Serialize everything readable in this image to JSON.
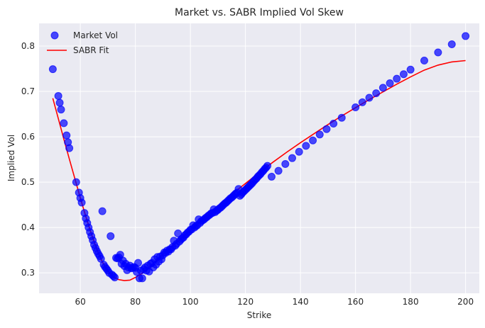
{
  "chart_data": {
    "type": "scatter",
    "title": "Market vs. SABR Implied Vol Skew",
    "xlabel": "Strike",
    "ylabel": "Implied Vol",
    "xlim": [
      45,
      205
    ],
    "ylim": [
      0.255,
      0.85
    ],
    "xticks": [
      60,
      80,
      100,
      120,
      140,
      160,
      180,
      200
    ],
    "yticks": [
      0.3,
      0.4,
      0.5,
      0.6,
      0.7,
      0.8
    ],
    "grid": true,
    "legend_position": "top-left",
    "background_color": "#eaeaf2",
    "series": [
      {
        "name": "Market Vol",
        "kind": "scatter",
        "color": "#0000ff",
        "points": [
          [
            50,
            0.749
          ],
          [
            52,
            0.69
          ],
          [
            52.5,
            0.675
          ],
          [
            53,
            0.66
          ],
          [
            54,
            0.63
          ],
          [
            55,
            0.603
          ],
          [
            55.5,
            0.588
          ],
          [
            56,
            0.575
          ],
          [
            58.5,
            0.5
          ],
          [
            59.5,
            0.477
          ],
          [
            60,
            0.465
          ],
          [
            60.5,
            0.455
          ],
          [
            61.5,
            0.432
          ],
          [
            62,
            0.42
          ],
          [
            62.5,
            0.41
          ],
          [
            63,
            0.4
          ],
          [
            63.5,
            0.39
          ],
          [
            64,
            0.381
          ],
          [
            64.5,
            0.372
          ],
          [
            65,
            0.362
          ],
          [
            65.5,
            0.355
          ],
          [
            66,
            0.348
          ],
          [
            66.5,
            0.342
          ],
          [
            67,
            0.337
          ],
          [
            67.5,
            0.331
          ],
          [
            68,
            0.436
          ],
          [
            68.5,
            0.318
          ],
          [
            69,
            0.313
          ],
          [
            69.5,
            0.309
          ],
          [
            70,
            0.305
          ],
          [
            70.5,
            0.3
          ],
          [
            71,
            0.381
          ],
          [
            71.5,
            0.296
          ],
          [
            72,
            0.293
          ],
          [
            72.5,
            0.29
          ],
          [
            73,
            0.333
          ],
          [
            73.5,
            0.332
          ],
          [
            74,
            0.334
          ],
          [
            74.5,
            0.34
          ],
          [
            75,
            0.32
          ],
          [
            75.5,
            0.327
          ],
          [
            76,
            0.315
          ],
          [
            76.5,
            0.32
          ],
          [
            77,
            0.306
          ],
          [
            77.5,
            0.312
          ],
          [
            78,
            0.316
          ],
          [
            78.5,
            0.31
          ],
          [
            79,
            0.311
          ],
          [
            79.5,
            0.313
          ],
          [
            80,
            0.311
          ],
          [
            80.5,
            0.302
          ],
          [
            81,
            0.322
          ],
          [
            81.5,
            0.288
          ],
          [
            82,
            0.305
          ],
          [
            82.5,
            0.288
          ],
          [
            83,
            0.308
          ],
          [
            83.5,
            0.312
          ],
          [
            84,
            0.305
          ],
          [
            84.5,
            0.316
          ],
          [
            85,
            0.303
          ],
          [
            85.5,
            0.32
          ],
          [
            86,
            0.322
          ],
          [
            86.5,
            0.312
          ],
          [
            87,
            0.33
          ],
          [
            87.5,
            0.318
          ],
          [
            88,
            0.335
          ],
          [
            88.5,
            0.325
          ],
          [
            89,
            0.336
          ],
          [
            89.5,
            0.33
          ],
          [
            90,
            0.339
          ],
          [
            90.5,
            0.345
          ],
          [
            91,
            0.344
          ],
          [
            91.5,
            0.349
          ],
          [
            92,
            0.347
          ],
          [
            92.5,
            0.352
          ],
          [
            93,
            0.352
          ],
          [
            93.5,
            0.357
          ],
          [
            94,
            0.371
          ],
          [
            94.5,
            0.36
          ],
          [
            95,
            0.364
          ],
          [
            95.5,
            0.387
          ],
          [
            96,
            0.369
          ],
          [
            96.5,
            0.373
          ],
          [
            97,
            0.376
          ],
          [
            97.5,
            0.378
          ],
          [
            98,
            0.383
          ],
          [
            98.5,
            0.385
          ],
          [
            99,
            0.389
          ],
          [
            99.5,
            0.391
          ],
          [
            100,
            0.395
          ],
          [
            100.5,
            0.396
          ],
          [
            101,
            0.405
          ],
          [
            101.5,
            0.4
          ],
          [
            102,
            0.403
          ],
          [
            102.5,
            0.405
          ],
          [
            103,
            0.418
          ],
          [
            103.5,
            0.41
          ],
          [
            104,
            0.414
          ],
          [
            104.5,
            0.416
          ],
          [
            105,
            0.418
          ],
          [
            105.5,
            0.421
          ],
          [
            106,
            0.423
          ],
          [
            106.5,
            0.426
          ],
          [
            107,
            0.428
          ],
          [
            107.5,
            0.431
          ],
          [
            108,
            0.432
          ],
          [
            108.5,
            0.44
          ],
          [
            109,
            0.434
          ],
          [
            109.5,
            0.437
          ],
          [
            110,
            0.439
          ],
          [
            110.5,
            0.442
          ],
          [
            111,
            0.444
          ],
          [
            111.5,
            0.447
          ],
          [
            112,
            0.45
          ],
          [
            112.5,
            0.453
          ],
          [
            113,
            0.455
          ],
          [
            113.5,
            0.458
          ],
          [
            114,
            0.461
          ],
          [
            114.5,
            0.464
          ],
          [
            115,
            0.466
          ],
          [
            115.5,
            0.469
          ],
          [
            116,
            0.472
          ],
          [
            116.5,
            0.475
          ],
          [
            117,
            0.477
          ],
          [
            117.5,
            0.485
          ],
          [
            118,
            0.47
          ],
          [
            118.5,
            0.473
          ],
          [
            119,
            0.477
          ],
          [
            119.5,
            0.48
          ],
          [
            120,
            0.483
          ],
          [
            120.5,
            0.486
          ],
          [
            121,
            0.489
          ],
          [
            121.5,
            0.492
          ],
          [
            122,
            0.495
          ],
          [
            122.5,
            0.498
          ],
          [
            123,
            0.502
          ],
          [
            123.5,
            0.505
          ],
          [
            124,
            0.508
          ],
          [
            124.5,
            0.512
          ],
          [
            125,
            0.515
          ],
          [
            125.5,
            0.518
          ],
          [
            126,
            0.522
          ],
          [
            126.5,
            0.525
          ],
          [
            127,
            0.529
          ],
          [
            127.5,
            0.532
          ],
          [
            128,
            0.536
          ],
          [
            129.5,
            0.512
          ],
          [
            132,
            0.525
          ],
          [
            134.5,
            0.54
          ],
          [
            137,
            0.553
          ],
          [
            139.5,
            0.567
          ],
          [
            142,
            0.58
          ],
          [
            144.5,
            0.592
          ],
          [
            147,
            0.605
          ],
          [
            149.5,
            0.617
          ],
          [
            152,
            0.629
          ],
          [
            155,
            0.642
          ],
          [
            160,
            0.665
          ],
          [
            162.5,
            0.676
          ],
          [
            165,
            0.686
          ],
          [
            167.5,
            0.696
          ],
          [
            170,
            0.708
          ],
          [
            172.5,
            0.718
          ],
          [
            175,
            0.728
          ],
          [
            177.5,
            0.738
          ],
          [
            180,
            0.748
          ],
          [
            185,
            0.768
          ],
          [
            190,
            0.786
          ],
          [
            195,
            0.804
          ],
          [
            200,
            0.822
          ]
        ]
      },
      {
        "name": "SABR Fit",
        "kind": "line",
        "color": "#ff0000",
        "points": [
          [
            50,
            0.685
          ],
          [
            52,
            0.64
          ],
          [
            54,
            0.595
          ],
          [
            56,
            0.551
          ],
          [
            58,
            0.508
          ],
          [
            60,
            0.465
          ],
          [
            62,
            0.424
          ],
          [
            64,
            0.386
          ],
          [
            66,
            0.352
          ],
          [
            68,
            0.324
          ],
          [
            70,
            0.304
          ],
          [
            72,
            0.291
          ],
          [
            74,
            0.285
          ],
          [
            76,
            0.283
          ],
          [
            78,
            0.284
          ],
          [
            80,
            0.29
          ],
          [
            82,
            0.297
          ],
          [
            84,
            0.307
          ],
          [
            86,
            0.318
          ],
          [
            88,
            0.329
          ],
          [
            90,
            0.341
          ],
          [
            95,
            0.367
          ],
          [
            100,
            0.394
          ],
          [
            105,
            0.42
          ],
          [
            110,
            0.447
          ],
          [
            115,
            0.473
          ],
          [
            120,
            0.497
          ],
          [
            125,
            0.521
          ],
          [
            130,
            0.544
          ],
          [
            135,
            0.566
          ],
          [
            140,
            0.587
          ],
          [
            145,
            0.607
          ],
          [
            150,
            0.627
          ],
          [
            155,
            0.646
          ],
          [
            160,
            0.664
          ],
          [
            165,
            0.682
          ],
          [
            170,
            0.699
          ],
          [
            175,
            0.716
          ],
          [
            180,
            0.732
          ],
          [
            185,
            0.747
          ],
          [
            190,
            0.758
          ],
          [
            195,
            0.765
          ],
          [
            200,
            0.768
          ]
        ]
      }
    ]
  }
}
